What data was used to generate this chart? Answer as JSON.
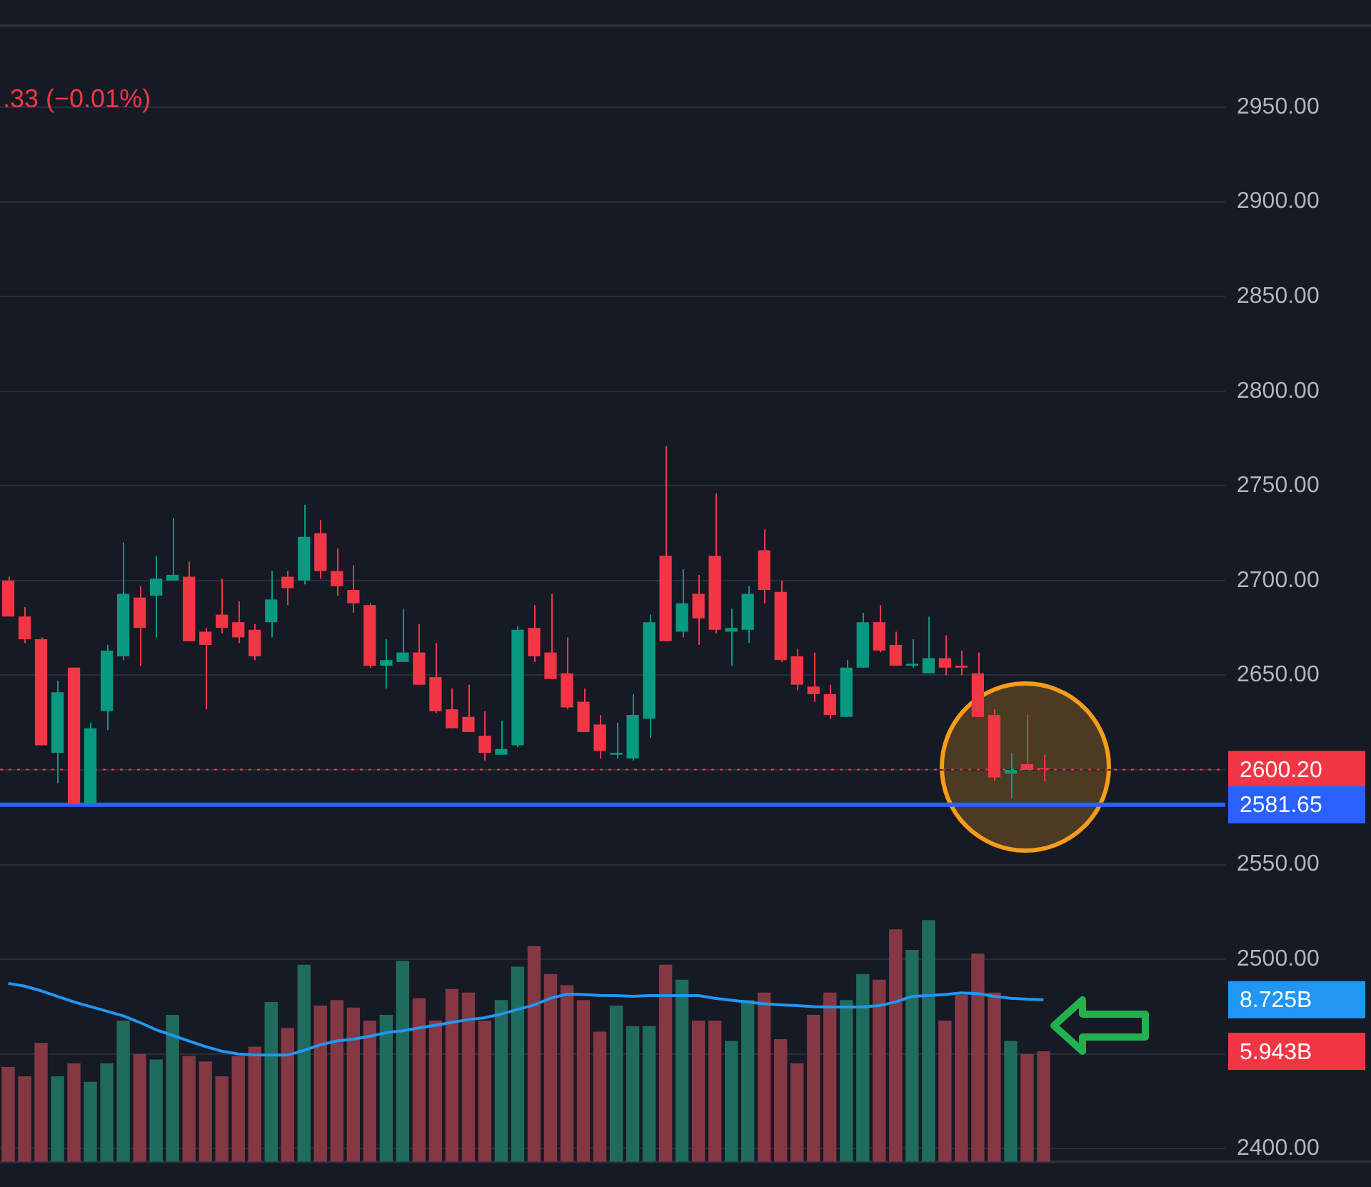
{
  "chart_data": {
    "type": "candlestick",
    "categories": [
      null,
      null,
      null,
      null,
      null,
      null,
      null,
      null,
      null,
      null,
      null,
      null,
      null,
      null,
      null,
      null,
      null,
      null,
      null,
      null,
      null,
      null,
      null,
      null,
      null,
      null,
      null,
      null,
      null,
      null,
      null,
      null,
      null,
      null,
      null,
      null,
      null,
      null,
      null,
      null,
      null,
      null,
      null,
      null,
      null,
      null,
      null,
      null,
      null,
      null,
      null,
      null,
      null,
      null,
      null,
      null,
      null,
      null,
      null,
      null,
      null,
      null,
      null,
      null
    ],
    "series": [
      {
        "ohlc": [
          [
            2700,
            2702,
            2681,
            2681
          ],
          [
            2681,
            2686,
            2667,
            2669
          ],
          [
            2669,
            2670,
            2613,
            2613
          ],
          [
            2609,
            2647,
            2593,
            2641
          ],
          [
            2654,
            2654,
            2582,
            2582
          ],
          [
            2582,
            2625,
            2581,
            2622
          ],
          [
            2631,
            2666,
            2621,
            2663
          ],
          [
            2660,
            2720,
            2658,
            2693
          ],
          [
            2691,
            2697,
            2655,
            2675
          ],
          [
            2692,
            2713,
            2670,
            2701
          ],
          [
            2700,
            2733,
            2700,
            2703
          ],
          [
            2702,
            2710,
            2668,
            2668
          ],
          [
            2673,
            2675,
            2632,
            2666
          ],
          [
            2682,
            2701,
            2672,
            2675
          ],
          [
            2678,
            2689,
            2667,
            2670
          ],
          [
            2674,
            2677,
            2658,
            2660
          ],
          [
            2678,
            2705,
            2670,
            2690
          ],
          [
            2702,
            2705,
            2687,
            2696
          ],
          [
            2700,
            2740,
            2698,
            2723
          ],
          [
            2725,
            2732,
            2701,
            2705
          ],
          [
            2705,
            2717,
            2692,
            2697
          ],
          [
            2695,
            2708,
            2683,
            2688
          ],
          [
            2687,
            2688,
            2654,
            2655
          ],
          [
            2655,
            2669,
            2643,
            2658
          ],
          [
            2657,
            2685,
            2657,
            2662
          ],
          [
            2662,
            2677,
            2645,
            2645
          ],
          [
            2649,
            2667,
            2630,
            2631
          ],
          [
            2632,
            2643,
            2622,
            2622
          ],
          [
            2628,
            2645,
            2620,
            2620
          ],
          [
            2618,
            2631,
            2605,
            2609
          ],
          [
            2608,
            2626,
            2608,
            2611
          ],
          [
            2613,
            2676,
            2612,
            2674
          ],
          [
            2675,
            2687,
            2657,
            2660
          ],
          [
            2662,
            2693,
            2648,
            2648
          ],
          [
            2651,
            2670,
            2632,
            2633
          ],
          [
            2636,
            2643,
            2620,
            2620
          ],
          [
            2624,
            2629,
            2606,
            2610
          ],
          [
            2608,
            2625,
            2606,
            2609
          ],
          [
            2606,
            2640,
            2605,
            2629
          ],
          [
            2627,
            2682,
            2617,
            2678
          ],
          [
            2713,
            2771,
            2668,
            2668
          ],
          [
            2673,
            2706,
            2670,
            2688
          ],
          [
            2693,
            2703,
            2666,
            2680
          ],
          [
            2713,
            2746,
            2672,
            2674
          ],
          [
            2673,
            2685,
            2655,
            2675
          ],
          [
            2674,
            2697,
            2667,
            2693
          ],
          [
            2716,
            2727,
            2688,
            2695
          ],
          [
            2694,
            2700,
            2657,
            2658
          ],
          [
            2660,
            2664,
            2642,
            2645
          ],
          [
            2644,
            2662,
            2636,
            2640
          ],
          [
            2640,
            2645,
            2627,
            2629
          ],
          [
            2628,
            2658,
            2628,
            2654
          ],
          [
            2654,
            2683,
            2654,
            2678
          ],
          [
            2678,
            2687,
            2662,
            2663
          ],
          [
            2666,
            2673,
            2655,
            2655
          ],
          [
            2655,
            2669,
            2654,
            2656
          ],
          [
            2651,
            2681,
            2651,
            2659
          ],
          [
            2659,
            2671,
            2650,
            2654
          ],
          [
            2655,
            2663,
            2650,
            2654
          ],
          [
            2651,
            2662,
            2628,
            2628
          ],
          [
            2629,
            2632,
            2594,
            2596
          ],
          [
            2598,
            2609,
            2585,
            2600
          ],
          [
            2603,
            2629,
            2600,
            2600
          ],
          [
            2601,
            2608,
            2594,
            2600.2
          ]
        ],
        "colors": [
          "#f23645",
          "#f23645",
          "#f23645",
          "#089981",
          "#f23645",
          "#089981",
          "#089981",
          "#089981",
          "#f23645",
          "#089981",
          "#089981",
          "#f23645",
          "#f23645",
          "#f23645",
          "#f23645",
          "#f23645",
          "#089981",
          "#f23645",
          "#089981",
          "#f23645",
          "#f23645",
          "#f23645",
          "#f23645",
          "#089981",
          "#089981",
          "#f23645",
          "#f23645",
          "#f23645",
          "#f23645",
          "#f23645",
          "#089981",
          "#089981",
          "#f23645",
          "#f23645",
          "#f23645",
          "#f23645",
          "#f23645",
          "#089981",
          "#089981",
          "#089981",
          "#f23645",
          "#089981",
          "#f23645",
          "#f23645",
          "#089981",
          "#089981",
          "#f23645",
          "#f23645",
          "#f23645",
          "#f23645",
          "#f23645",
          "#089981",
          "#089981",
          "#f23645",
          "#f23645",
          "#089981",
          "#089981",
          "#f23645",
          "#f23645",
          "#f23645",
          "#f23645",
          "#089981",
          "#f23645",
          "#f23645"
        ]
      },
      {
        "type": "bar",
        "axis": "y2",
        "values": [
          5.1,
          4.6,
          6.4,
          4.6,
          5.3,
          4.3,
          5.3,
          7.6,
          5.8,
          5.5,
          7.9,
          5.7,
          5.4,
          4.6,
          5.7,
          6.2,
          8.6,
          7.2,
          10.6,
          8.4,
          8.7,
          8.3,
          7.6,
          7.9,
          10.8,
          8.8,
          7.6,
          9.3,
          9.1,
          7.6,
          8.7,
          10.5,
          11.6,
          10.1,
          9.5,
          8.7,
          7.0,
          8.4,
          7.3,
          7.3,
          10.6,
          9.8,
          7.6,
          7.6,
          6.5,
          8.7,
          9.1,
          6.6,
          5.3,
          7.9,
          9.1,
          8.7,
          10.1,
          9.8,
          12.5,
          11.4,
          13.0,
          7.6,
          9.0,
          11.2,
          9.1,
          6.5,
          5.8,
          5.943
        ],
        "colors": [
          "#843844",
          "#843844",
          "#843844",
          "#1f6b5d",
          "#843844",
          "#1f6b5d",
          "#1f6b5d",
          "#1f6b5d",
          "#843844",
          "#1f6b5d",
          "#1f6b5d",
          "#843844",
          "#843844",
          "#843844",
          "#843844",
          "#843844",
          "#1f6b5d",
          "#843844",
          "#1f6b5d",
          "#843844",
          "#843844",
          "#843844",
          "#843844",
          "#1f6b5d",
          "#1f6b5d",
          "#843844",
          "#843844",
          "#843844",
          "#843844",
          "#843844",
          "#1f6b5d",
          "#1f6b5d",
          "#843844",
          "#843844",
          "#843844",
          "#843844",
          "#843844",
          "#1f6b5d",
          "#1f6b5d",
          "#1f6b5d",
          "#843844",
          "#1f6b5d",
          "#843844",
          "#843844",
          "#1f6b5d",
          "#1f6b5d",
          "#843844",
          "#843844",
          "#843844",
          "#843844",
          "#843844",
          "#1f6b5d",
          "#1f6b5d",
          "#843844",
          "#843844",
          "#1f6b5d",
          "#1f6b5d",
          "#843844",
          "#843844",
          "#843844",
          "#843844",
          "#1f6b5d",
          "#843844",
          "#843844"
        ]
      },
      {
        "type": "line",
        "axis": "y2",
        "color": "#2196f3",
        "values": [
          9.6,
          9.45,
          9.2,
          8.9,
          8.6,
          8.35,
          8.1,
          7.85,
          7.5,
          7.1,
          6.8,
          6.5,
          6.2,
          5.95,
          5.8,
          5.75,
          5.74,
          5.74,
          6.0,
          6.3,
          6.5,
          6.6,
          6.75,
          6.95,
          7.05,
          7.2,
          7.35,
          7.5,
          7.65,
          7.75,
          7.95,
          8.2,
          8.44,
          8.8,
          9.02,
          9.0,
          8.95,
          8.94,
          8.9,
          8.94,
          8.94,
          8.94,
          8.94,
          8.8,
          8.69,
          8.6,
          8.5,
          8.44,
          8.4,
          8.35,
          8.33,
          8.33,
          8.33,
          8.4,
          8.6,
          8.9,
          8.94,
          9.0,
          9.09,
          9.05,
          8.9,
          8.8,
          8.75,
          8.725
        ]
      }
    ],
    "ylim": [
      2393,
      2993
    ],
    "yticks": [
      {
        "value": 2400,
        "label": "2400.00"
      },
      {
        "value": 2450,
        "label": null
      },
      {
        "value": 2500,
        "label": "2500.00"
      },
      {
        "value": 2550,
        "label": "2550.00"
      },
      {
        "value": 2600,
        "label": null
      },
      {
        "value": 2650,
        "label": "2650.00"
      },
      {
        "value": 2700,
        "label": "2700.00"
      },
      {
        "value": 2750,
        "label": "2750.00"
      },
      {
        "value": 2800,
        "label": "2800.00"
      },
      {
        "value": 2850,
        "label": "2850.00"
      },
      {
        "value": 2900,
        "label": "2900.00"
      },
      {
        "value": 2950,
        "label": "2950.00"
      }
    ],
    "y2lim": [
      0,
      61.1
    ],
    "y2ticks": [
      {
        "value": 8.725,
        "label": "8.725B"
      },
      {
        "value": 5.943,
        "label": "5.943B"
      }
    ],
    "ref_lines": [
      {
        "axis": "y",
        "value": 2600.2,
        "label": "2600.20",
        "color": "#f23645",
        "line_style": "dotted"
      },
      {
        "axis": "y",
        "value": 2581.65,
        "label": "2581.65",
        "color": "#2962ff",
        "line_style": "solid"
      }
    ],
    "annotations": [
      ".33 (−0.01%)"
    ],
    "grid": "y",
    "tick_labels": "y"
  }
}
